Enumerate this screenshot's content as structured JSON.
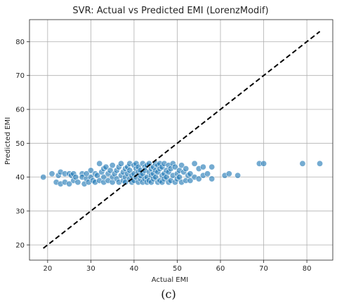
{
  "chart_data": {
    "type": "scatter",
    "title": "SVR: Actual vs Predicted EMI (LorenzModif)",
    "xlabel": "Actual EMI",
    "ylabel": "Predicted EMI",
    "xlim": [
      15.8,
      86.0
    ],
    "ylim": [
      15.5,
      86.5
    ],
    "xticks": [
      20,
      30,
      40,
      50,
      60,
      70,
      80
    ],
    "yticks": [
      20,
      30,
      40,
      50,
      60,
      70,
      80
    ],
    "grid": true,
    "reference_line": {
      "style": "dashed",
      "color": "#000000",
      "from": [
        19,
        19
      ],
      "to": [
        83,
        83
      ]
    },
    "marker_color": "#1f77b4",
    "series": [
      {
        "points": [
          [
            19,
            40
          ],
          [
            21,
            41
          ],
          [
            22,
            38.5
          ],
          [
            22.5,
            40.5
          ],
          [
            23,
            38
          ],
          [
            23,
            41.5
          ],
          [
            24,
            41
          ],
          [
            24,
            38.5
          ],
          [
            25,
            41
          ],
          [
            25,
            38
          ],
          [
            25.5,
            40.5
          ],
          [
            26,
            39
          ],
          [
            26,
            41
          ],
          [
            26.5,
            40
          ],
          [
            27,
            38.5
          ],
          [
            28,
            41
          ],
          [
            28,
            40
          ],
          [
            28.5,
            38
          ],
          [
            29,
            39.5
          ],
          [
            29,
            41
          ],
          [
            29.5,
            38.5
          ],
          [
            30,
            40
          ],
          [
            30,
            42
          ],
          [
            30.5,
            39
          ],
          [
            31,
            41
          ],
          [
            31,
            38.5
          ],
          [
            31.5,
            40.5
          ],
          [
            32,
            39
          ],
          [
            32,
            44
          ],
          [
            32.5,
            41.5
          ],
          [
            33,
            38.5
          ],
          [
            33,
            40
          ],
          [
            33,
            42.5
          ],
          [
            33.5,
            43
          ],
          [
            34,
            39
          ],
          [
            34,
            41
          ],
          [
            34.5,
            42
          ],
          [
            35,
            38.5
          ],
          [
            35,
            40
          ],
          [
            35,
            43.5
          ],
          [
            35.5,
            41
          ],
          [
            36,
            42
          ],
          [
            36,
            39.5
          ],
          [
            36.5,
            43
          ],
          [
            36.5,
            38.5
          ],
          [
            37,
            44
          ],
          [
            37,
            40.5
          ],
          [
            37.5,
            41.5
          ],
          [
            37.5,
            39
          ],
          [
            38,
            42.5
          ],
          [
            38,
            40
          ],
          [
            38,
            38.5
          ],
          [
            38.5,
            43
          ],
          [
            38.5,
            41
          ],
          [
            39,
            44
          ],
          [
            39,
            39.5
          ],
          [
            39,
            42
          ],
          [
            39.5,
            40.5
          ],
          [
            39.5,
            38.5
          ],
          [
            40,
            43.5
          ],
          [
            40,
            41
          ],
          [
            40,
            39
          ],
          [
            40.5,
            42.5
          ],
          [
            40.5,
            40
          ],
          [
            40.5,
            44
          ],
          [
            41,
            38.5
          ],
          [
            41,
            41.5
          ],
          [
            41,
            43
          ],
          [
            41.5,
            39.5
          ],
          [
            41.5,
            42
          ],
          [
            41.5,
            40.5
          ],
          [
            42,
            44
          ],
          [
            42,
            38.5
          ],
          [
            42,
            41
          ],
          [
            42.5,
            43
          ],
          [
            42.5,
            39.5
          ],
          [
            42.5,
            42
          ],
          [
            43,
            40
          ],
          [
            43,
            43.5
          ],
          [
            43,
            38.5
          ],
          [
            43.5,
            41.5
          ],
          [
            43.5,
            44
          ],
          [
            43.5,
            39
          ],
          [
            44,
            42.5
          ],
          [
            44,
            40.5
          ],
          [
            44,
            38.5
          ],
          [
            44.5,
            43
          ],
          [
            44.5,
            41
          ],
          [
            44.5,
            39.5
          ],
          [
            45,
            44
          ],
          [
            45,
            42
          ],
          [
            45,
            40
          ],
          [
            45.5,
            38.5
          ],
          [
            45.5,
            43.5
          ],
          [
            45.5,
            41.5
          ],
          [
            46,
            39
          ],
          [
            46,
            42.5
          ],
          [
            46,
            44
          ],
          [
            46.5,
            40.5
          ],
          [
            46.5,
            38.5
          ],
          [
            46.5,
            43
          ],
          [
            47,
            41
          ],
          [
            47,
            39.5
          ],
          [
            47,
            44
          ],
          [
            47.5,
            42
          ],
          [
            47.5,
            40
          ],
          [
            48,
            43.5
          ],
          [
            48,
            38.5
          ],
          [
            48,
            41.5
          ],
          [
            48.5,
            39
          ],
          [
            48.5,
            42.5
          ],
          [
            49,
            44
          ],
          [
            49,
            40.5
          ],
          [
            49.5,
            38.5
          ],
          [
            49.5,
            43
          ],
          [
            50,
            41
          ],
          [
            50,
            39.5
          ],
          [
            50.5,
            42
          ],
          [
            50.5,
            40
          ],
          [
            51,
            43.5
          ],
          [
            51,
            38.5
          ],
          [
            51.5,
            41.5
          ],
          [
            52,
            39
          ],
          [
            52,
            42.5
          ],
          [
            52.5,
            40.5
          ],
          [
            53,
            41
          ],
          [
            53,
            39
          ],
          [
            54,
            44
          ],
          [
            54,
            40
          ],
          [
            55,
            42.5
          ],
          [
            55,
            39.5
          ],
          [
            56,
            40.5
          ],
          [
            56,
            43
          ],
          [
            57,
            41
          ],
          [
            58,
            39.5
          ],
          [
            58,
            43
          ],
          [
            61,
            40.5
          ],
          [
            62,
            41
          ],
          [
            64,
            40.5
          ],
          [
            69,
            44
          ],
          [
            70,
            44
          ],
          [
            79,
            44
          ],
          [
            83,
            44
          ]
        ]
      }
    ]
  },
  "caption": "(c)"
}
